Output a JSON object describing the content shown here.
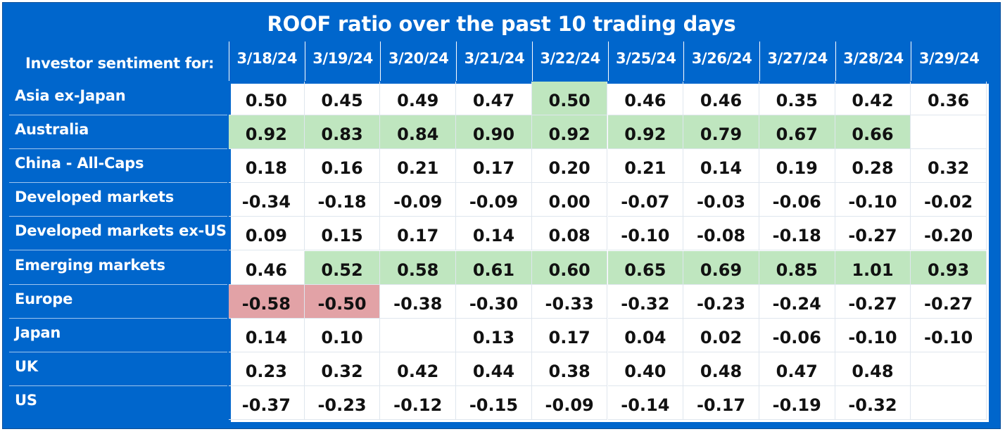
{
  "chart_data": {
    "type": "table",
    "title": "ROOF ratio over the past 10 trading days",
    "row_header_label": "Investor sentiment for:",
    "columns": [
      "3/18/24",
      "3/19/24",
      "3/20/24",
      "3/21/24",
      "3/22/24",
      "3/25/24",
      "3/26/24",
      "3/27/24",
      "3/28/24",
      "3/29/24"
    ],
    "rows": [
      {
        "label": "Asia ex-Japan",
        "values": [
          "0.50",
          "0.45",
          "0.49",
          "0.47",
          "0.50",
          "0.46",
          "0.46",
          "0.35",
          "0.42",
          "0.36"
        ]
      },
      {
        "label": "Australia",
        "values": [
          "0.92",
          "0.83",
          "0.84",
          "0.90",
          "0.92",
          "0.92",
          "0.79",
          "0.67",
          "0.66",
          ""
        ]
      },
      {
        "label": "China - All-Caps",
        "values": [
          "0.18",
          "0.16",
          "0.21",
          "0.17",
          "0.20",
          "0.21",
          "0.14",
          "0.19",
          "0.28",
          "0.32"
        ]
      },
      {
        "label": "Developed markets",
        "values": [
          "-0.34",
          "-0.18",
          "-0.09",
          "-0.09",
          "0.00",
          "-0.07",
          "-0.03",
          "-0.06",
          "-0.10",
          "-0.02"
        ]
      },
      {
        "label": "Developed markets ex-US",
        "values": [
          "0.09",
          "0.15",
          "0.17",
          "0.14",
          "0.08",
          "-0.10",
          "-0.08",
          "-0.18",
          "-0.27",
          "-0.20"
        ]
      },
      {
        "label": "Emerging markets",
        "values": [
          "0.46",
          "0.52",
          "0.58",
          "0.61",
          "0.60",
          "0.65",
          "0.69",
          "0.85",
          "1.01",
          "0.93"
        ]
      },
      {
        "label": "Europe",
        "values": [
          "-0.58",
          "-0.50",
          "-0.38",
          "-0.30",
          "-0.33",
          "-0.32",
          "-0.23",
          "-0.24",
          "-0.27",
          "-0.27"
        ]
      },
      {
        "label": "Japan",
        "values": [
          "0.14",
          "0.10",
          "",
          "0.13",
          "0.17",
          "0.04",
          "0.02",
          "-0.06",
          "-0.10",
          "-0.10"
        ]
      },
      {
        "label": "UK",
        "values": [
          "0.23",
          "0.32",
          "0.42",
          "0.44",
          "0.38",
          "0.40",
          "0.48",
          "0.47",
          "0.48",
          ""
        ]
      },
      {
        "label": "US",
        "values": [
          "-0.37",
          "-0.23",
          "-0.12",
          "-0.15",
          "-0.09",
          "-0.14",
          "-0.17",
          "-0.19",
          "-0.32",
          ""
        ]
      }
    ],
    "highlight": [
      [
        "",
        "",
        "",
        "",
        "green",
        "",
        "",
        "",
        "",
        ""
      ],
      [
        "green",
        "green",
        "green",
        "green",
        "green",
        "green",
        "green",
        "green",
        "green",
        ""
      ],
      [
        "",
        "",
        "",
        "",
        "",
        "",
        "",
        "",
        "",
        ""
      ],
      [
        "",
        "",
        "",
        "",
        "",
        "",
        "",
        "",
        "",
        ""
      ],
      [
        "",
        "",
        "",
        "",
        "",
        "",
        "",
        "",
        "",
        ""
      ],
      [
        "",
        "green",
        "green",
        "green",
        "green",
        "green",
        "green",
        "green",
        "green",
        "green"
      ],
      [
        "red",
        "red",
        "",
        "",
        "",
        "",
        "",
        "",
        "",
        ""
      ],
      [
        "",
        "",
        "",
        "",
        "",
        "",
        "",
        "",
        "",
        ""
      ],
      [
        "",
        "",
        "",
        "",
        "",
        "",
        "",
        "",
        "",
        ""
      ],
      [
        "",
        "",
        "",
        "",
        "",
        "",
        "",
        "",
        "",
        ""
      ]
    ],
    "colors": {
      "background": "#0066cc",
      "positive_highlight": "#bfe6bf",
      "negative_highlight": "#e2a2a6"
    }
  }
}
